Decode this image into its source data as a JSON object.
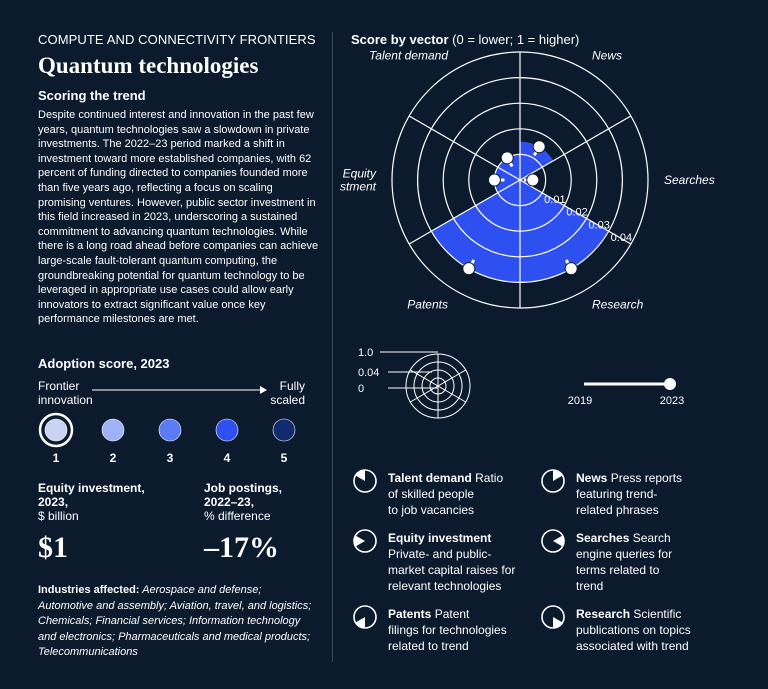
{
  "header": {
    "kicker": "COMPUTE AND CONNECTIVITY FRONTIERS",
    "title": "Quantum technologies",
    "subhead": "Scoring the trend",
    "body": "Despite continued interest and innovation in the past few years, quantum technologies saw a slowdown in private investments. The 2022–23 period marked a shift in investment toward more established companies, with 62 percent of funding directed to companies founded more than five years ago, reflecting a focus on scaling promising ventures. However, public sector investment in this field increased in 2023, underscoring a sustained commitment to advancing quantum technologies. While there is a long road ahead before companies can achieve large-scale fault-tolerant quantum computing, the groundbreaking potential for quantum technology to be leveraged in appropriate use cases could allow early innovators to extract significant value once key performance milestones are met."
  },
  "adoption": {
    "title": "Adoption score, 2023",
    "low_label_1": "Frontier",
    "low_label_2": "innovation",
    "high_label_1": "Fully",
    "high_label_2": "scaled",
    "levels": [
      {
        "label": "1",
        "color": "#c9d4f5"
      },
      {
        "label": "2",
        "color": "#9fb2f5"
      },
      {
        "label": "3",
        "color": "#5c7cf5"
      },
      {
        "label": "4",
        "color": "#2e50f0"
      },
      {
        "label": "5",
        "color": "#122a6e"
      }
    ],
    "selected_level": 1
  },
  "stats": {
    "equity_label_1": "Equity investment,",
    "equity_label_2": "2023,",
    "equity_unit": "$ billion",
    "equity_value": "$1",
    "jobs_label_1": "Job postings,",
    "jobs_label_2": "2022–23,",
    "jobs_unit": "% difference",
    "jobs_value": "–17%"
  },
  "industries": {
    "label": "Industries affected:",
    "list": "Aerospace and defense; Automotive and assembly; Aviation, travel, and logistics; Chemicals; Financial services; Information technology and electronics; Pharmaceuticals and medical products; Telecommunications"
  },
  "chart_data": {
    "type": "polar-area",
    "title": "Score by vector",
    "title_note": "(0 = lower; 1 = higher)",
    "vectors": [
      {
        "name": "News",
        "value": 0.015,
        "value_prev": 0.015
      },
      {
        "name": "Searches",
        "value": 0.005,
        "value_prev": 0.005
      },
      {
        "name": "Research",
        "value": 0.04,
        "value_prev": 0.04
      },
      {
        "name": "Patents",
        "value": 0.04,
        "value_prev": 0.04
      },
      {
        "name": "Equity investment",
        "value": 0.01,
        "value_prev": 0.01
      },
      {
        "name": "Talent demand",
        "value": 0.01,
        "value_prev": 0.01
      }
    ],
    "ring_labels": [
      "0.01",
      "0.02",
      "0.03",
      "0.04"
    ],
    "r_max": 0.05,
    "accent_color": "#2e50f0",
    "key": {
      "scale_labels": [
        "1.0",
        "0.04",
        "0"
      ],
      "years": [
        "2019",
        "2023"
      ]
    }
  },
  "legend": [
    {
      "name": "Talent demand",
      "desc_1": "Ratio",
      "desc_2": "of skilled people",
      "desc_3": "to job vacancies",
      "desc_4": ""
    },
    {
      "name": "News",
      "desc_1": "Press reports",
      "desc_2": "featuring trend-",
      "desc_3": "related phrases",
      "desc_4": ""
    },
    {
      "name": "Equity investment",
      "desc_1": "",
      "desc_2": "Private- and public-",
      "desc_3": "market capital raises for",
      "desc_4": "relevant technologies"
    },
    {
      "name": "Searches",
      "desc_1": "Search",
      "desc_2": "engine queries for",
      "desc_3": "terms related to",
      "desc_4": "trend"
    },
    {
      "name": "Patents",
      "desc_1": "Patent",
      "desc_2": "filings for technologies",
      "desc_3": "related to trend",
      "desc_4": ""
    },
    {
      "name": "Research",
      "desc_1": "Scientific",
      "desc_2": "publications on topics",
      "desc_3": "associated with trend",
      "desc_4": ""
    }
  ]
}
